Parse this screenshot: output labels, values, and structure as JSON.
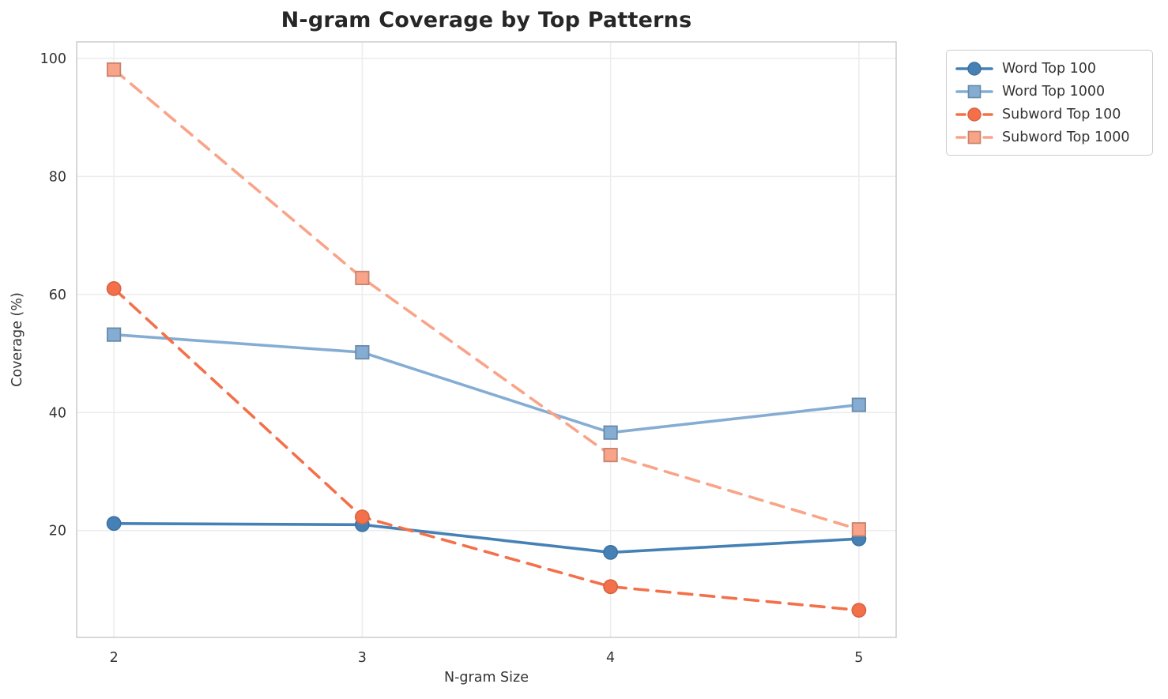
{
  "chart_data": {
    "type": "line",
    "title": "N-gram Coverage by Top Patterns",
    "xlabel": "N-gram Size",
    "ylabel": "Coverage (%)",
    "x": [
      2,
      3,
      4,
      5
    ],
    "xticks": [
      2,
      3,
      4,
      5
    ],
    "yticks": [
      20,
      40,
      60,
      80,
      100
    ],
    "xlim": [
      1.85,
      5.15
    ],
    "ylim": [
      1.9,
      102.8
    ],
    "grid": true,
    "legend_position": "outside-top-right",
    "series": [
      {
        "name": "Word Top 100",
        "values": [
          21.2,
          21.0,
          16.3,
          18.6
        ],
        "color": "#4581B5",
        "line_style": "solid",
        "marker": "circle"
      },
      {
        "name": "Word Top 1000",
        "values": [
          53.2,
          50.2,
          36.6,
          41.3
        ],
        "color": "#85ADD3",
        "line_style": "solid",
        "marker": "square"
      },
      {
        "name": "Subword Top 100",
        "values": [
          61.0,
          22.3,
          10.5,
          6.5
        ],
        "color": "#F3704A",
        "line_style": "dashed",
        "marker": "circle"
      },
      {
        "name": "Subword Top 1000",
        "values": [
          98.1,
          62.8,
          32.8,
          20.2
        ],
        "color": "#F9A488",
        "line_style": "dashed",
        "marker": "square"
      }
    ],
    "style": {
      "grid_color": "#ededef",
      "spine_color": "#cfcfcf",
      "background": "#ffffff"
    }
  }
}
